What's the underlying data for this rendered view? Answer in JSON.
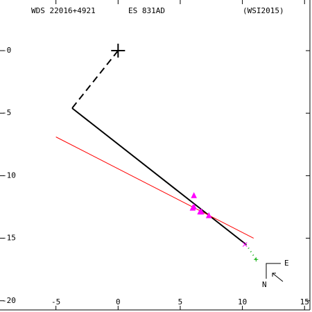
{
  "chart_data": {
    "type": "scatter",
    "labels": [
      "WDS 22016+4921",
      "ES  831AD",
      "(WSI2015)"
    ],
    "compass": {
      "east": "E",
      "north": "N"
    },
    "xlim": [
      -9.5,
      15.6
    ],
    "ylim": [
      -20.9,
      4.05
    ],
    "xticks": [
      -5,
      0,
      5,
      10,
      15
    ],
    "yticks": [
      {
        "value": 0,
        "label": "-0"
      },
      -5,
      -10,
      -15,
      -20
    ],
    "series": [
      {
        "color": "#000000",
        "marker": "plus",
        "x": [
          0
        ],
        "values": [
          0
        ]
      },
      {
        "color": "#000000",
        "line": "dashed",
        "x": [
          0,
          -3.7
        ],
        "values": [
          0,
          -4.6
        ]
      },
      {
        "color": "#000000",
        "line": "solid",
        "x": [
          -3.7,
          10.3
        ],
        "values": [
          -4.6,
          -15.5
        ]
      },
      {
        "color": "#ff0000",
        "line": "thin",
        "x": [
          -5,
          10.9
        ],
        "values": [
          -6.9,
          -15.0
        ]
      },
      {
        "color": "#00aa00",
        "line": "dotted",
        "x": [
          10.3,
          11.1
        ],
        "values": [
          -15.5,
          -16.7
        ]
      },
      {
        "color": "#ff00ff",
        "marker": "triangle",
        "x": [
          6.1,
          6.0,
          6.1,
          6.6,
          6.7,
          7.3
        ],
        "values": [
          -11.6,
          -12.6,
          -12.5,
          -12.9,
          -12.9,
          -13.2
        ]
      },
      {
        "color": "#ff00ff",
        "marker": "cross",
        "x": [
          10.2
        ],
        "values": [
          -15.5
        ]
      },
      {
        "color": "#00aa00",
        "marker": "smallplus",
        "x": [
          11.1
        ],
        "values": [
          -16.7
        ]
      }
    ]
  }
}
